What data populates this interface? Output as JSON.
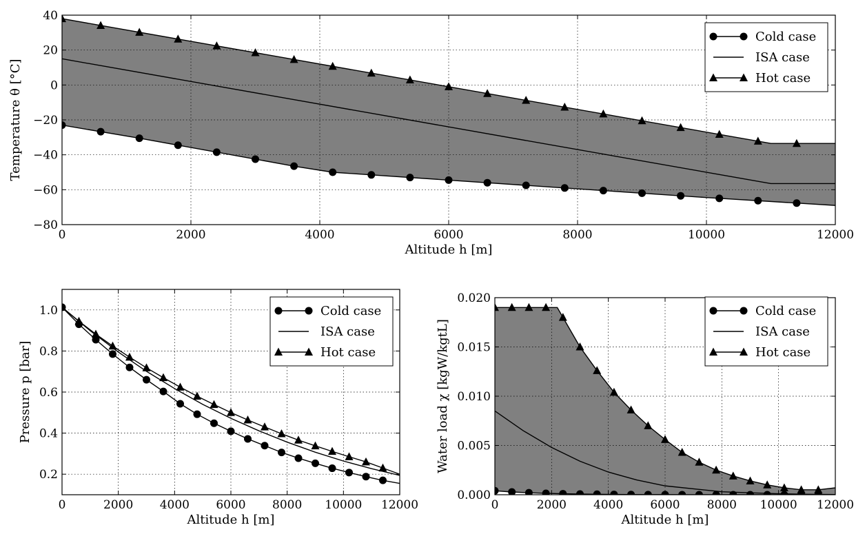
{
  "chart_data": [
    {
      "type": "line",
      "name": "temperature",
      "xlabel": "Altitude h [m]",
      "ylabel": "Temperature θ [°C]",
      "xlim": [
        0,
        12000
      ],
      "ylim": [
        -80,
        40
      ],
      "xticks": [
        0,
        2000,
        4000,
        6000,
        8000,
        10000,
        12000
      ],
      "yticks": [
        -80,
        -60,
        -40,
        -20,
        0,
        20,
        40
      ],
      "tick_format": "int",
      "grid": true,
      "legend_position": "top-right",
      "fill_between": [
        "Hot case",
        "Cold case"
      ],
      "fill_color": "#808080",
      "series": [
        {
          "name": "Cold case",
          "marker": "circle",
          "marker_every": 600,
          "x": [
            0,
            1200,
            2400,
            3600,
            4200,
            6000,
            8000,
            10000,
            12000
          ],
          "y": [
            -23,
            -30.5,
            -38.5,
            -46.5,
            -50,
            -54.5,
            -59.5,
            -64.5,
            -69
          ]
        },
        {
          "name": "ISA case",
          "marker": "none",
          "x": [
            0,
            11000,
            12000
          ],
          "y": [
            15,
            -56.5,
            -56.5
          ]
        },
        {
          "name": "Hot case",
          "marker": "triangle",
          "marker_every": 600,
          "x": [
            0,
            11000,
            12000
          ],
          "y": [
            38,
            -33.5,
            -33.5
          ]
        }
      ]
    },
    {
      "type": "line",
      "name": "pressure",
      "xlabel": "Altitude h [m]",
      "ylabel": "Pressure p [bar]",
      "xlim": [
        0,
        12000
      ],
      "ylim": [
        0.1,
        1.1
      ],
      "xticks": [
        0,
        2000,
        4000,
        6000,
        8000,
        10000,
        12000
      ],
      "yticks": [
        0.2,
        0.4,
        0.6,
        0.8,
        1.0
      ],
      "tick_format": "1dp",
      "grid": true,
      "legend_position": "top-right",
      "series": [
        {
          "name": "Cold case",
          "marker": "circle",
          "marker_every": 600,
          "x": [
            0,
            600,
            1200,
            1800,
            2400,
            3000,
            3600,
            4200,
            4800,
            5400,
            6000,
            6600,
            7200,
            7800,
            8400,
            9000,
            9600,
            10200,
            10800,
            11400,
            12000
          ],
          "y": [
            1.013,
            0.93,
            0.855,
            0.785,
            0.72,
            0.66,
            0.603,
            0.543,
            0.492,
            0.448,
            0.409,
            0.372,
            0.339,
            0.306,
            0.278,
            0.253,
            0.229,
            0.208,
            0.188,
            0.17,
            0.155
          ]
        },
        {
          "name": "ISA case",
          "marker": "none",
          "x": [
            0,
            1000,
            2000,
            3000,
            4000,
            5000,
            6000,
            7000,
            8000,
            9000,
            10000,
            11000,
            12000
          ],
          "y": [
            1.013,
            0.899,
            0.795,
            0.701,
            0.617,
            0.54,
            0.472,
            0.411,
            0.356,
            0.307,
            0.264,
            0.227,
            0.194
          ]
        },
        {
          "name": "Hot case",
          "marker": "triangle",
          "marker_every": 600,
          "x": [
            0,
            600,
            1200,
            1800,
            2400,
            3000,
            3600,
            4200,
            4800,
            5400,
            6000,
            6600,
            7200,
            7800,
            8400,
            9000,
            9600,
            10200,
            10800,
            11400,
            12000
          ],
          "y": [
            1.013,
            0.945,
            0.882,
            0.824,
            0.77,
            0.718,
            0.67,
            0.624,
            0.58,
            0.539,
            0.5,
            0.464,
            0.43,
            0.397,
            0.366,
            0.338,
            0.311,
            0.285,
            0.26,
            0.23,
            0.2
          ]
        }
      ]
    },
    {
      "type": "line",
      "name": "water-load",
      "xlabel": "Altitude h [m]",
      "ylabel": "Water load χ [kgW/kgtL]",
      "xlim": [
        0,
        12000
      ],
      "ylim": [
        0,
        0.02
      ],
      "xticks": [
        0,
        2000,
        4000,
        6000,
        8000,
        10000,
        12000
      ],
      "yticks": [
        0.0,
        0.005,
        0.01,
        0.015,
        0.02
      ],
      "tick_format": "3dp",
      "grid": true,
      "legend_position": "top-right",
      "fill_between": [
        "Hot case",
        "Cold case"
      ],
      "fill_color": "#808080",
      "series": [
        {
          "name": "Cold case",
          "marker": "circle",
          "marker_every": 600,
          "x": [
            0,
            600,
            1200,
            1800,
            2400,
            3000,
            3600,
            4200,
            4800,
            5400,
            6000,
            6600,
            7200,
            7800,
            8400,
            9000,
            9600,
            10200,
            10800,
            11400,
            12000
          ],
          "y": [
            0.0004,
            0.00028,
            0.0002,
            0.00014,
            0.0001,
            7e-05,
            5e-05,
            3e-05,
            2e-05,
            1e-05,
            1e-05,
            0,
            0,
            0,
            0,
            0,
            0,
            0,
            0,
            0,
            0
          ]
        },
        {
          "name": "ISA case",
          "marker": "none",
          "x": [
            0,
            1000,
            2000,
            3000,
            4000,
            5000,
            6000,
            7000,
            8000,
            9000,
            10000,
            11000,
            12000
          ],
          "y": [
            0.0085,
            0.0065,
            0.0048,
            0.0034,
            0.0023,
            0.0015,
            0.0009,
            0.0006,
            0.0003,
            0.0002,
            0.0001,
            5e-05,
            2e-05
          ]
        },
        {
          "name": "Hot case",
          "marker": "triangle",
          "marker_every": 600,
          "x": [
            0,
            600,
            1200,
            1800,
            2200,
            2400,
            3000,
            3600,
            4200,
            4800,
            5400,
            6000,
            6600,
            7200,
            7800,
            8400,
            9000,
            9600,
            10200,
            10800,
            11400,
            12000
          ],
          "y": [
            0.019,
            0.019,
            0.019,
            0.019,
            0.019,
            0.018,
            0.015,
            0.0126,
            0.0104,
            0.0086,
            0.007,
            0.0056,
            0.0043,
            0.0033,
            0.0025,
            0.0019,
            0.0014,
            0.001,
            0.0007,
            0.0005,
            0.0005,
            0.0007
          ]
        }
      ]
    }
  ]
}
